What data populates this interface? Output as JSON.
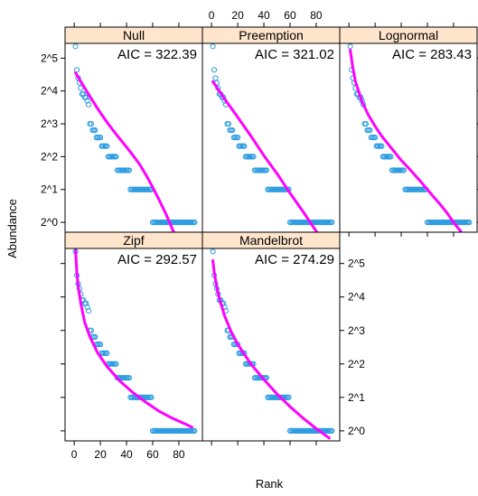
{
  "chart_data": {
    "type": "scatter",
    "xlabel": "Rank",
    "ylabel": "Abundance",
    "xlim": [
      -7,
      98
    ],
    "ylim_log2": [
      -0.3,
      5.45
    ],
    "x_ticks": [
      0,
      20,
      40,
      60,
      80
    ],
    "x_tick_labels": [
      "0",
      "20",
      "40",
      "60",
      "80"
    ],
    "y_ticks_log2": [
      0,
      1,
      2,
      3,
      4,
      5
    ],
    "y_tick_labels": [
      "2^0",
      "2^1",
      "2^2",
      "2^3",
      "2^4",
      "2^5"
    ],
    "colors": {
      "points": "#2b9be0",
      "fit": "#ff00ff",
      "strip": "#ffe5cc"
    },
    "observed": {
      "x": [
        1,
        2,
        3,
        4,
        5,
        6,
        7,
        8,
        9,
        10,
        11,
        12,
        13,
        14,
        15,
        16,
        17,
        18,
        19,
        20,
        21,
        22,
        23,
        24,
        25,
        26,
        27,
        28,
        29,
        30,
        31,
        32,
        33,
        34,
        35,
        36,
        37,
        38,
        39,
        40,
        41,
        42,
        43,
        44,
        45,
        46,
        47,
        48,
        49,
        50,
        51,
        52,
        53,
        54,
        55,
        56,
        57,
        58,
        59,
        60,
        61,
        62,
        63,
        64,
        65,
        66,
        67,
        68,
        69,
        70,
        71,
        72,
        73,
        74,
        75,
        76,
        77,
        78,
        79,
        80,
        81,
        82,
        83,
        84,
        85,
        86,
        87,
        88,
        89,
        90,
        91,
        92
      ],
      "y": [
        41,
        25,
        21,
        19,
        17,
        15,
        15,
        14,
        14,
        13,
        12,
        8,
        8,
        7,
        7,
        7,
        6,
        6,
        6,
        6,
        5,
        5,
        5,
        5,
        5,
        4,
        4,
        4,
        4,
        4,
        4,
        4,
        3,
        3,
        3,
        3,
        3,
        3,
        3,
        3,
        3,
        3,
        2,
        2,
        2,
        2,
        2,
        2,
        2,
        2,
        2,
        2,
        2,
        2,
        2,
        2,
        2,
        2,
        2,
        1,
        1,
        1,
        1,
        1,
        1,
        1,
        1,
        1,
        1,
        1,
        1,
        1,
        1,
        1,
        1,
        1,
        1,
        1,
        1,
        1,
        1,
        1,
        1,
        1,
        1,
        1,
        1,
        1,
        1,
        1,
        1,
        1
      ]
    },
    "panels": [
      {
        "name": "Null",
        "aic_text": "AIC = 322.39",
        "fit": {
          "x": [
            1,
            5,
            10,
            15,
            20,
            25,
            30,
            35,
            40,
            45,
            50,
            55,
            60,
            65,
            70,
            75,
            80,
            85,
            90
          ],
          "y": [
            23.5,
            19.5,
            15.6,
            12.5,
            10.1,
            8.3,
            6.9,
            5.8,
            4.9,
            4.1,
            3.4,
            2.7,
            2.1,
            1.6,
            1.2,
            0.87,
            0.64,
            0.5,
            0.4
          ]
        }
      },
      {
        "name": "Preemption",
        "aic_text": "AIC = 321.02",
        "fit": {
          "x": [
            1,
            10,
            20,
            30,
            40,
            50,
            60,
            70,
            80,
            90
          ],
          "y": [
            19.5,
            13.5,
            9.2,
            6.2,
            4.1,
            2.8,
            1.85,
            1.25,
            0.83,
            0.56
          ]
        }
      },
      {
        "name": "Lognormal",
        "aic_text": "AIC = 283.43",
        "fit": {
          "x": [
            1,
            3,
            5,
            10,
            15,
            20,
            25,
            30,
            35,
            40,
            45,
            50,
            55,
            60,
            65,
            70,
            75,
            80,
            85,
            90
          ],
          "y": [
            38,
            26,
            19.5,
            12.8,
            9.6,
            7.6,
            6.2,
            5.2,
            4.4,
            3.7,
            3.2,
            2.75,
            2.35,
            2.0,
            1.7,
            1.45,
            1.22,
            1.0,
            0.84,
            0.7
          ]
        }
      },
      {
        "name": "Zipf",
        "aic_text": "AIC = 292.57",
        "fit": {
          "x": [
            1,
            2,
            3,
            5,
            8,
            12,
            18,
            25,
            35,
            45,
            55,
            65,
            75,
            85,
            90
          ],
          "y": [
            42,
            27,
            20,
            14,
            9.5,
            7,
            5,
            3.8,
            2.8,
            2.2,
            1.8,
            1.5,
            1.3,
            1.15,
            1.08
          ]
        }
      },
      {
        "name": "Mandelbrot",
        "aic_text": "AIC = 274.29",
        "fit": {
          "x": [
            1,
            2,
            4,
            6,
            10,
            15,
            20,
            30,
            40,
            50,
            60,
            70,
            80,
            90
          ],
          "y": [
            34,
            27,
            19.5,
            15.5,
            10.8,
            7.8,
            6.0,
            4.0,
            2.9,
            2.15,
            1.65,
            1.3,
            1.05,
            0.86
          ]
        }
      }
    ]
  }
}
